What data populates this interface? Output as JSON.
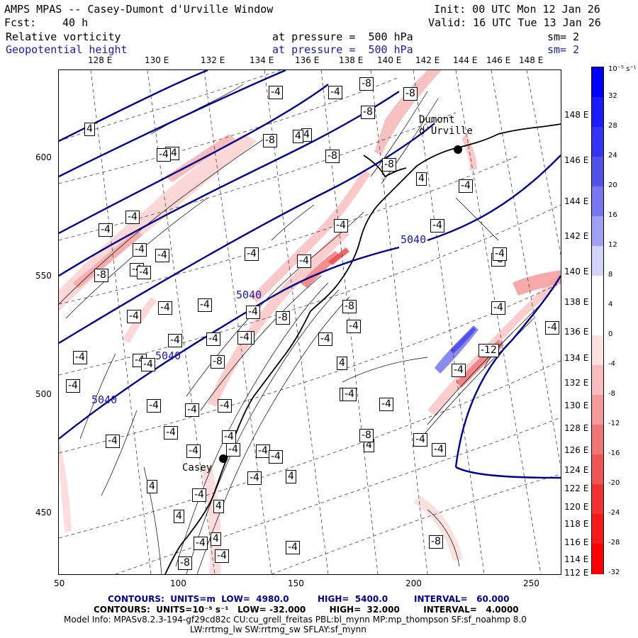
{
  "header": {
    "title": "AMPS MPAS -- Casey-Dumont d'Urville Window",
    "init": "Init: 00 UTC Mon 12 Jan 26",
    "fcst_label": "Fcst:",
    "fcst_value": "40 h",
    "valid": "Valid: 16 UTC Tue 13 Jan 26",
    "field1_name": "Relative vorticity",
    "field1_level": "at pressure =  500 hPa",
    "field1_sm": "sm= 2",
    "field2_name": "Geopotential height",
    "field2_level": "at pressure =  500 hPa",
    "field2_sm": "sm= 2"
  },
  "map": {
    "top_lon_labels": [
      "128 E",
      "130 E",
      "132 E",
      "134 E",
      "136 E",
      "138 E",
      "140 E",
      "142 E",
      "144 E",
      "146 E",
      "148 E"
    ],
    "right_lat_labels": [
      "148 E",
      "146 E",
      "144 E",
      "142 E",
      "140 E",
      "138 E",
      "136 E",
      "134 E",
      "132 E",
      "130 E",
      "128 E",
      "126 E",
      "124 E",
      "122 E",
      "120 E",
      "118 E",
      "116 E",
      "114 E",
      "112 E"
    ],
    "x_ticks": [
      "50",
      "100",
      "150",
      "200",
      "250"
    ],
    "y_ticks": [
      "600",
      "550",
      "500",
      "450"
    ],
    "place_casey": "Casey",
    "place_dumont": "Dumont\nd'Urville",
    "height_labels": [
      "5040",
      "5040",
      "5040",
      "5040"
    ],
    "vort_labels": [
      "-8",
      "-4",
      "-4",
      "-8",
      "-8",
      "4",
      "4",
      "-4",
      "-8",
      "-8",
      "-4",
      "-4",
      "4",
      "4",
      "-8",
      "-4",
      "-4",
      "-4",
      "-4",
      "-8",
      "-4",
      "-4",
      "-4",
      "-4",
      "-8",
      "-4",
      "-4",
      "-4",
      "-4",
      "-8",
      "-4",
      "-4",
      "-4",
      "-4",
      "-8",
      "-4",
      "-4",
      "-4",
      "-4",
      "-4",
      "-4",
      "-4",
      "-4",
      "-4",
      "-4",
      "-4",
      "-4",
      "-4",
      "-4",
      "-4",
      "-4",
      "-4",
      "4",
      "4",
      "4",
      "4",
      "4",
      "4",
      "4",
      "-8",
      "-8",
      "-4",
      "-4",
      "-12",
      "-4",
      "-4",
      "-4",
      "-4",
      "-4",
      "-8",
      "-4",
      "4",
      "-4",
      "-8",
      "-4",
      "-4",
      "-4",
      "-4",
      "-4"
    ]
  },
  "colorbar": {
    "top_unit": "10⁻⁵ s⁻¹",
    "labels": [
      "32",
      "28",
      "24",
      "20",
      "16",
      "12",
      "8",
      "4",
      "0",
      "-4",
      "-8",
      "-12",
      "-16",
      "-20",
      "-24",
      "-28",
      "-32"
    ],
    "colors": [
      "#0000ff",
      "#1a1aff",
      "#3434f5",
      "#5252e6",
      "#7878ee",
      "#a0a0f5",
      "#d2d2fa",
      "#ffffff",
      "#ffffff",
      "#fde0e0",
      "#f8bcbc",
      "#f49a9a",
      "#f07777",
      "#ee5555",
      "#f23232",
      "#f51a1a",
      "#ff0000"
    ]
  },
  "footer": {
    "line1_a": "CONTOURS:  UNITS=m  LOW=  4980.0",
    "line1_b": "HIGH=  5400.0",
    "line1_c": "INTERVAL=   60.000",
    "line2": "CONTOURS:  UNITS=10⁻⁵ s⁻¹   LOW= -32.000        HIGH=  32.000        INTERVAL=   4.0000",
    "line3": "Model Info: MPASv8.2.3-194-gf29cd82c CU:cu_grell_freitas PBL:bl_mynn MP:mp_thompson SF:sf_noahmp 8.0",
    "line4": "LW:rrtmg_lw SW:rrtmg_sw SFLAY:sf_mynn"
  }
}
